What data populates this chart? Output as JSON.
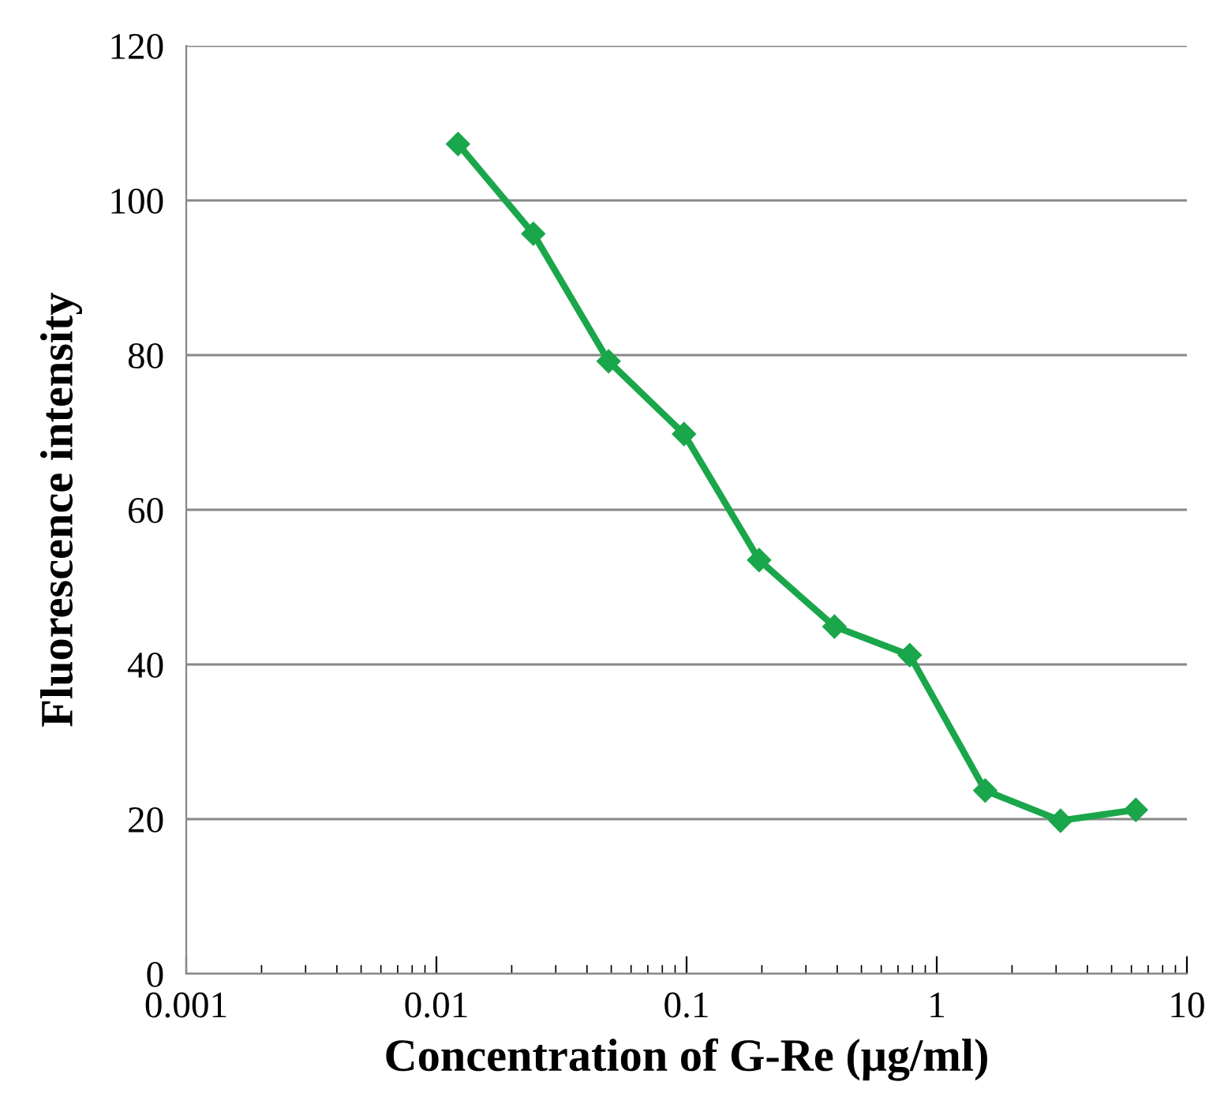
{
  "chart_data": {
    "type": "line",
    "xlabel": "Concentration of G-Re (μg/ml)",
    "ylabel": "Fluorescence intensity",
    "x": [
      0.0122,
      0.0244,
      0.0488,
      0.0977,
      0.195,
      0.39,
      0.78,
      1.5625,
      3.125,
      6.25
    ],
    "series": [
      {
        "color": "#1aa64a",
        "values": [
          107.3,
          95.7,
          79.2,
          69.8,
          53.5,
          44.9,
          41.2,
          23.7,
          19.8,
          21.2
        ]
      }
    ],
    "log": "x",
    "xlim": [
      0.001,
      10
    ],
    "xticks": [
      0.001,
      0.01,
      0.1,
      1,
      10
    ],
    "ylim": [
      0,
      120
    ],
    "yticks": [
      0,
      20,
      40,
      60,
      80,
      100,
      120
    ],
    "grid": "y",
    "marker": "diamond",
    "line_style": "solid"
  }
}
